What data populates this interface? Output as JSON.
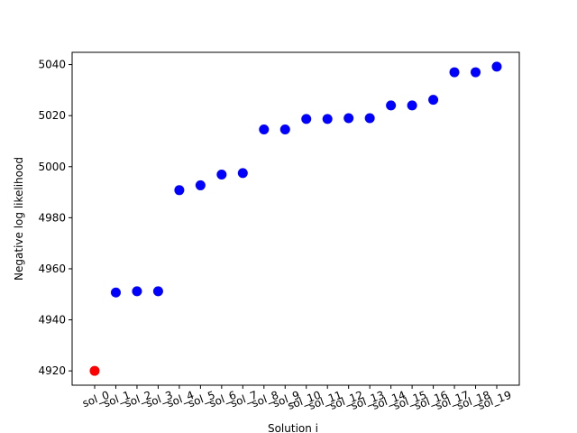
{
  "chart_data": {
    "type": "scatter",
    "title": "",
    "xlabel": "Solution i",
    "ylabel": "Negative log likelihood",
    "categories": [
      "sol_0",
      "sol_1",
      "sol_2",
      "sol_3",
      "sol_4",
      "sol_5",
      "sol_6",
      "sol_7",
      "sol_8",
      "sol_9",
      "sol_10",
      "sol_11",
      "sol_12",
      "sol_13",
      "sol_14",
      "sol_15",
      "sol_16",
      "sol_17",
      "sol_18",
      "sol_19"
    ],
    "values": [
      4920.0,
      4950.7,
      4951.2,
      4951.2,
      4990.8,
      4992.7,
      4996.9,
      4997.5,
      5014.6,
      5014.6,
      5018.7,
      5018.7,
      5019.0,
      5019.0,
      5024.0,
      5024.0,
      5026.2,
      5037.0,
      5037.0,
      5039.2
    ],
    "point_colors": [
      "#ff0000",
      "#0000ff",
      "#0000ff",
      "#0000ff",
      "#0000ff",
      "#0000ff",
      "#0000ff",
      "#0000ff",
      "#0000ff",
      "#0000ff",
      "#0000ff",
      "#0000ff",
      "#0000ff",
      "#0000ff",
      "#0000ff",
      "#0000ff",
      "#0000ff",
      "#0000ff",
      "#0000ff",
      "#0000ff"
    ],
    "ylim": [
      4914.4,
      5044.8
    ],
    "yticks": [
      4920,
      4940,
      4960,
      4980,
      5000,
      5020,
      5040
    ],
    "grid": false,
    "legend": "none"
  }
}
